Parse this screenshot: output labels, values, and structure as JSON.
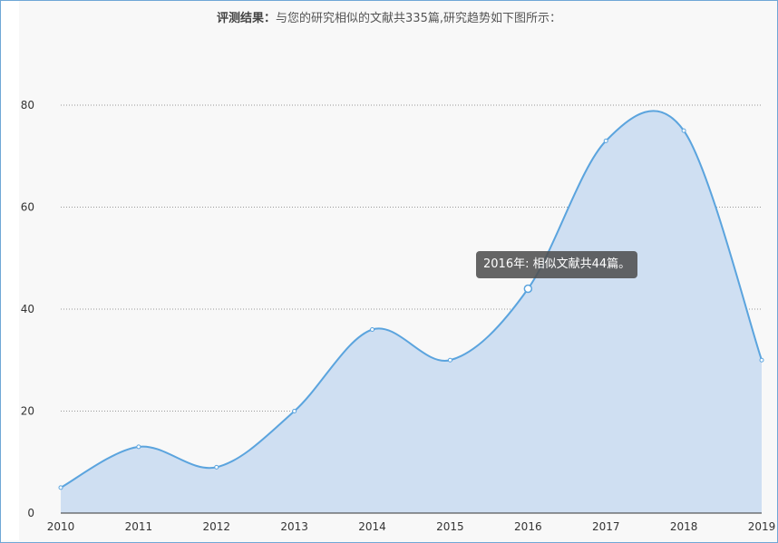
{
  "header": {
    "label": "评测结果：",
    "text": "与您的研究相似的文献共335篇,研究趋势如下图所示："
  },
  "tooltip": {
    "text": "2016年: 相似文献共44篇。"
  },
  "colors": {
    "line": "#5ba4de",
    "fill": "#cfdff2",
    "grid": "#999999",
    "tooltip_bg": "#555555"
  },
  "chart_data": {
    "type": "area",
    "title": "",
    "xlabel": "",
    "ylabel": "",
    "x": [
      "2010",
      "2011",
      "2012",
      "2013",
      "2014",
      "2015",
      "2016",
      "2017",
      "2018",
      "2019"
    ],
    "values": [
      5,
      13,
      9,
      20,
      36,
      30,
      44,
      73,
      75,
      30
    ],
    "yticks": [
      0,
      20,
      40,
      60,
      80
    ],
    "ylim": [
      0,
      80
    ],
    "grid": "horizontal-dotted",
    "highlighted_point": "2016"
  }
}
